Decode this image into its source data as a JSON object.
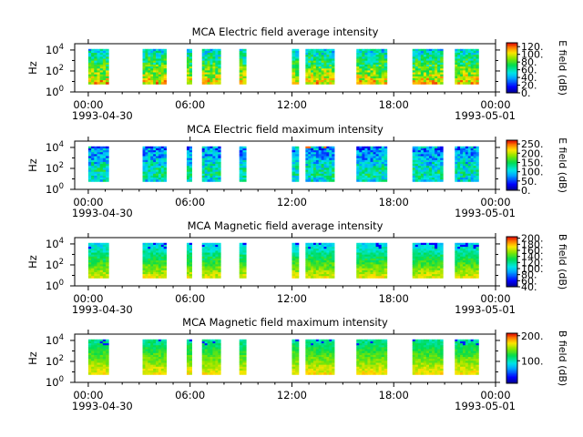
{
  "chart_data": [
    {
      "type": "heatmap",
      "title": "MCA  Electric field average intensity",
      "ylabel": "Hz",
      "colorbar_label": "E field (dB)",
      "colorbar_ticks": [
        "0.",
        "20.",
        "40.",
        "60.",
        "80.",
        "100.",
        "120."
      ],
      "colorbar_range": [
        0,
        130
      ],
      "yscale": "log",
      "ylim": [
        1,
        40000
      ],
      "y_ticks": [
        "10^0",
        "10^2",
        "10^4"
      ],
      "x_ticks": [
        "00:00",
        "06:00",
        "12:00",
        "18:00",
        "00:00"
      ],
      "x_dates": [
        "1993-04-30",
        "1993-05-01"
      ],
      "data_blocks_hours": [
        [
          0,
          1.2
        ],
        [
          3.2,
          4.6
        ],
        [
          5.8,
          6.1
        ],
        [
          6.7,
          7.8
        ],
        [
          8.9,
          9.3
        ],
        [
          12.0,
          12.4
        ],
        [
          12.8,
          14.5
        ],
        [
          15.8,
          17.6
        ],
        [
          19.1,
          20.9
        ],
        [
          21.6,
          23.0
        ]
      ],
      "color_profile": [
        "cyan-green-low",
        "green-mid",
        "orange-yellow-high"
      ]
    },
    {
      "type": "heatmap",
      "title": "MCA  Electric field maximum intensity",
      "ylabel": "Hz",
      "colorbar_label": "E field (dB)",
      "colorbar_ticks": [
        "0.",
        "50.",
        "100.",
        "150.",
        "200.",
        "250."
      ],
      "colorbar_range": [
        0,
        270
      ],
      "yscale": "log",
      "ylim": [
        1,
        40000
      ],
      "y_ticks": [
        "10^0",
        "10^2",
        "10^4"
      ],
      "x_ticks": [
        "00:00",
        "06:00",
        "12:00",
        "18:00",
        "00:00"
      ],
      "x_dates": [
        "1993-04-30",
        "1993-05-01"
      ],
      "data_blocks_hours": [
        [
          0,
          1.2
        ],
        [
          3.2,
          4.6
        ],
        [
          5.8,
          6.1
        ],
        [
          6.7,
          7.8
        ],
        [
          8.9,
          9.3
        ],
        [
          12.0,
          12.4
        ],
        [
          12.8,
          14.5
        ],
        [
          15.8,
          17.6
        ],
        [
          19.1,
          20.9
        ],
        [
          21.6,
          23.0
        ]
      ],
      "color_profile": [
        "blue-cyan",
        "cyan-green"
      ]
    },
    {
      "type": "heatmap",
      "title": "MCA  Magnetic field average intensity",
      "ylabel": "Hz",
      "colorbar_label": "B field (dB)",
      "colorbar_ticks": [
        "40.",
        "60.",
        "80.",
        "100.",
        "120.",
        "140.",
        "160.",
        "180.",
        "200."
      ],
      "colorbar_range": [
        40,
        205
      ],
      "yscale": "log",
      "ylim": [
        1,
        40000
      ],
      "y_ticks": [
        "10^0",
        "10^2",
        "10^4"
      ],
      "x_ticks": [
        "00:00",
        "06:00",
        "12:00",
        "18:00",
        "00:00"
      ],
      "x_dates": [
        "1993-04-30",
        "1993-05-01"
      ],
      "data_blocks_hours": [
        [
          0,
          1.2
        ],
        [
          3.2,
          4.6
        ],
        [
          5.8,
          6.1
        ],
        [
          6.7,
          7.8
        ],
        [
          8.9,
          9.3
        ],
        [
          12.0,
          12.4
        ],
        [
          12.8,
          14.5
        ],
        [
          15.8,
          17.6
        ],
        [
          19.1,
          20.9
        ],
        [
          21.6,
          23.0
        ]
      ],
      "color_profile": [
        "cyan-top",
        "green-mid",
        "yellow-low"
      ]
    },
    {
      "type": "heatmap",
      "title": "MCA  Magnetic field maximum intensity",
      "ylabel": "Hz",
      "colorbar_label": "B field (dB)",
      "colorbar_ticks": [
        "100.",
        "200."
      ],
      "colorbar_range": [
        10,
        210
      ],
      "yscale": "log",
      "ylim": [
        1,
        40000
      ],
      "y_ticks": [
        "10^0",
        "10^2",
        "10^4"
      ],
      "x_ticks": [
        "00:00",
        "06:00",
        "12:00",
        "18:00",
        "00:00"
      ],
      "x_dates": [
        "1993-04-30",
        "1993-05-01"
      ],
      "data_blocks_hours": [
        [
          0,
          1.2
        ],
        [
          3.2,
          4.6
        ],
        [
          5.8,
          6.1
        ],
        [
          6.7,
          7.8
        ],
        [
          8.9,
          9.3
        ],
        [
          12.0,
          12.4
        ],
        [
          12.8,
          14.5
        ],
        [
          15.8,
          17.6
        ],
        [
          19.1,
          20.9
        ],
        [
          21.6,
          23.0
        ]
      ],
      "color_profile": [
        "green-top",
        "yellow-low"
      ]
    }
  ]
}
